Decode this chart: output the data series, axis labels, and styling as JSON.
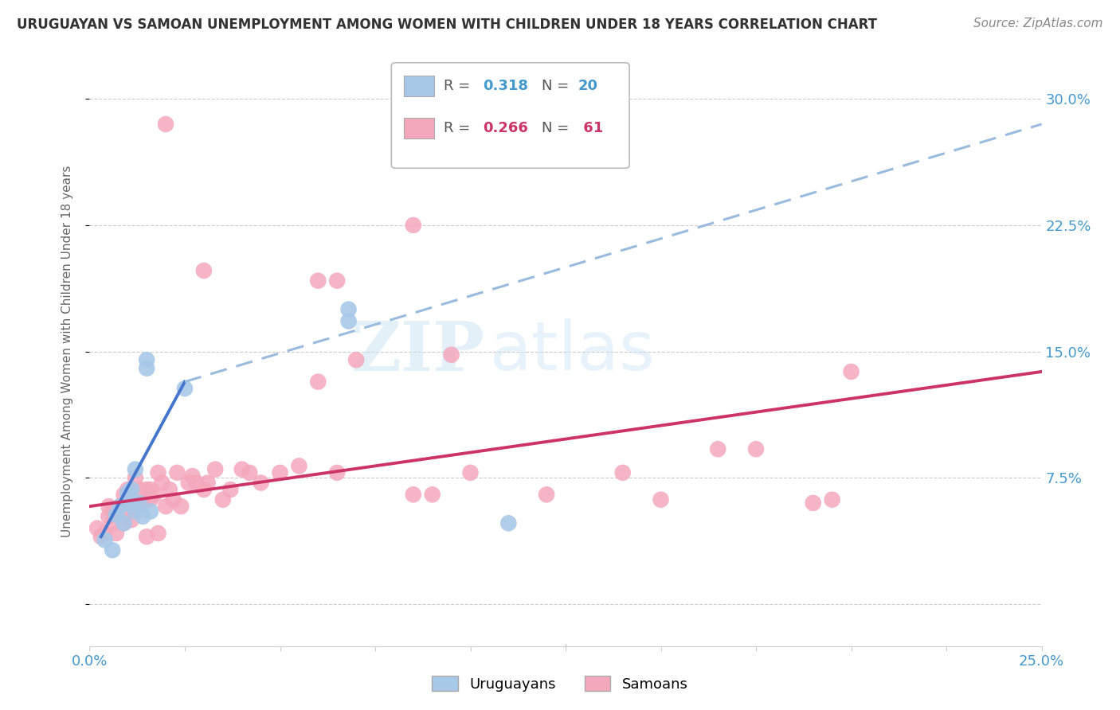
{
  "title": "URUGUAYAN VS SAMOAN UNEMPLOYMENT AMONG WOMEN WITH CHILDREN UNDER 18 YEARS CORRELATION CHART",
  "source": "Source: ZipAtlas.com",
  "ylabel": "Unemployment Among Women with Children Under 18 years",
  "xlim": [
    0.0,
    0.25
  ],
  "ylim": [
    -0.025,
    0.325
  ],
  "ytick_positions": [
    0.0,
    0.075,
    0.15,
    0.225,
    0.3
  ],
  "yticklabels": [
    "",
    "7.5%",
    "15.0%",
    "22.5%",
    "30.0%"
  ],
  "xtick_positions": [
    0.0,
    0.025,
    0.05,
    0.075,
    0.1,
    0.125,
    0.15,
    0.175,
    0.2,
    0.225,
    0.25
  ],
  "grid_color": "#cccccc",
  "bg_color": "#ffffff",
  "watermark_zip": "ZIP",
  "watermark_atlas": "atlas",
  "uru_color": "#a8c8e8",
  "sam_color": "#f4a8bc",
  "uru_line_color": "#4477cc",
  "uru_dash_color": "#99bbdd",
  "sam_line_color": "#cc3366",
  "label_color": "#4499cc",
  "legend_uru_R": "0.318",
  "legend_uru_N": "20",
  "legend_sam_R": "0.266",
  "legend_sam_N": "61",
  "uruguayan_x": [
    0.004,
    0.006,
    0.007,
    0.008,
    0.009,
    0.01,
    0.01,
    0.011,
    0.011,
    0.012,
    0.013,
    0.014,
    0.015,
    0.015,
    0.016,
    0.025,
    0.068,
    0.068,
    0.11,
    0.012
  ],
  "uruguayan_y": [
    0.038,
    0.032,
    0.053,
    0.058,
    0.048,
    0.06,
    0.066,
    0.06,
    0.068,
    0.055,
    0.06,
    0.052,
    0.145,
    0.14,
    0.055,
    0.128,
    0.168,
    0.175,
    0.048,
    0.08
  ],
  "samoan_x": [
    0.002,
    0.003,
    0.004,
    0.005,
    0.005,
    0.006,
    0.006,
    0.007,
    0.007,
    0.008,
    0.009,
    0.009,
    0.01,
    0.01,
    0.011,
    0.011,
    0.012,
    0.012,
    0.013,
    0.013,
    0.014,
    0.015,
    0.015,
    0.016,
    0.016,
    0.017,
    0.018,
    0.018,
    0.019,
    0.02,
    0.021,
    0.022,
    0.023,
    0.024,
    0.026,
    0.027,
    0.028,
    0.03,
    0.031,
    0.033,
    0.035,
    0.037,
    0.04,
    0.042,
    0.045,
    0.05,
    0.055,
    0.06,
    0.065,
    0.07,
    0.085,
    0.09,
    0.1,
    0.12,
    0.14,
    0.15,
    0.165,
    0.175,
    0.19,
    0.195,
    0.2
  ],
  "samoan_y": [
    0.045,
    0.04,
    0.042,
    0.052,
    0.058,
    0.048,
    0.055,
    0.042,
    0.055,
    0.058,
    0.048,
    0.065,
    0.055,
    0.068,
    0.05,
    0.062,
    0.06,
    0.075,
    0.058,
    0.068,
    0.06,
    0.04,
    0.068,
    0.062,
    0.068,
    0.065,
    0.042,
    0.078,
    0.072,
    0.058,
    0.068,
    0.062,
    0.078,
    0.058,
    0.072,
    0.076,
    0.072,
    0.068,
    0.072,
    0.08,
    0.062,
    0.068,
    0.08,
    0.078,
    0.072,
    0.078,
    0.082,
    0.132,
    0.078,
    0.145,
    0.065,
    0.065,
    0.078,
    0.065,
    0.078,
    0.062,
    0.092,
    0.092,
    0.06,
    0.062,
    0.138
  ],
  "samoan_special_x": [
    0.02,
    0.085,
    0.06,
    0.065,
    0.03,
    0.095
  ],
  "samoan_special_y": [
    0.285,
    0.225,
    0.192,
    0.192,
    0.198,
    0.148
  ],
  "uru_line_x0": 0.003,
  "uru_line_y0": 0.04,
  "uru_line_solid_x1": 0.025,
  "uru_line_solid_y1": 0.132,
  "uru_line_dash_x1": 0.25,
  "uru_line_dash_y1": 0.285,
  "sam_line_x0": 0.0,
  "sam_line_y0": 0.058,
  "sam_line_x1": 0.25,
  "sam_line_y1": 0.138
}
